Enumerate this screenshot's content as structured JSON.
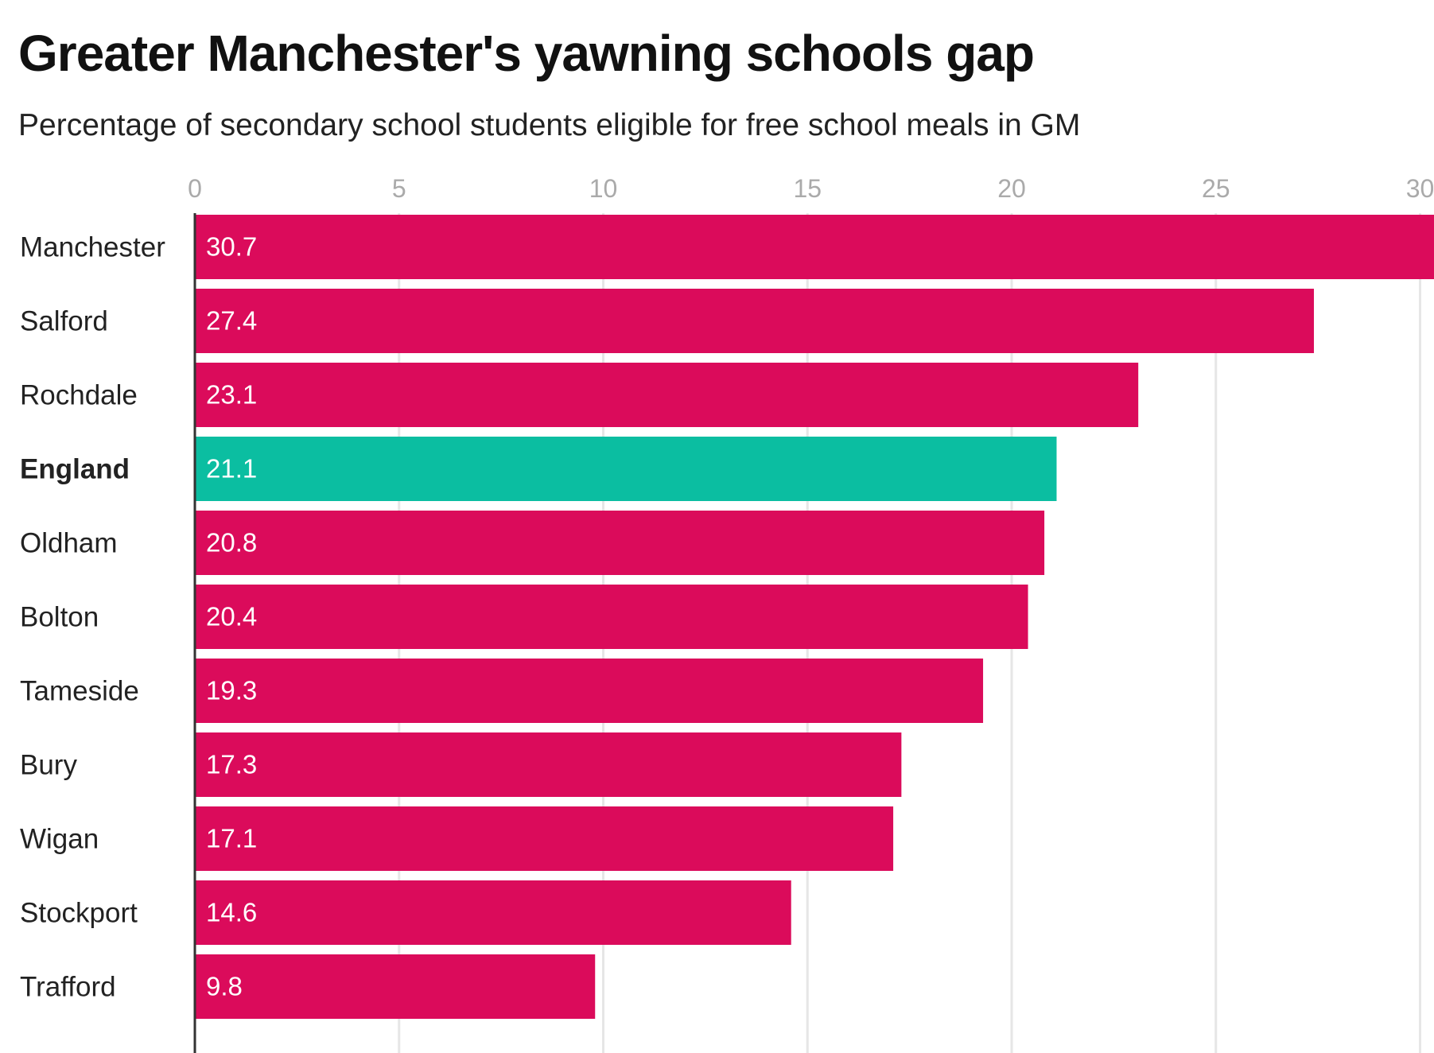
{
  "title": "Greater Manchester's yawning schools gap",
  "subtitle": "Percentage of secondary school students eligible for free school meals in GM",
  "colors": {
    "gm": "#db0b5b",
    "england": "#0bbea1",
    "grid": "#e6e6e6",
    "axis": "#333333"
  },
  "chart_data": {
    "type": "bar",
    "orientation": "horizontal",
    "title": "Greater Manchester's yawning schools gap",
    "subtitle": "Percentage of secondary school students eligible for free school meals in GM",
    "xlabel": "",
    "ylabel": "",
    "xlim": [
      0,
      30.7
    ],
    "xticks": [
      0,
      5,
      10,
      15,
      20,
      25,
      30
    ],
    "grid": true,
    "categories": [
      "Manchester",
      "Salford",
      "Rochdale",
      "England",
      "Oldham",
      "Bolton",
      "Tameside",
      "Bury",
      "Wigan",
      "Stockport",
      "Trafford"
    ],
    "values": [
      30.7,
      27.4,
      23.1,
      21.1,
      20.8,
      20.4,
      19.3,
      17.3,
      17.1,
      14.6,
      9.8
    ],
    "labels": [
      "30.7",
      "27.4",
      "23.1",
      "21.1",
      "20.8",
      "20.4",
      "19.3",
      "17.3",
      "17.1",
      "14.6",
      "9.8"
    ],
    "highlight": [
      "England"
    ]
  }
}
